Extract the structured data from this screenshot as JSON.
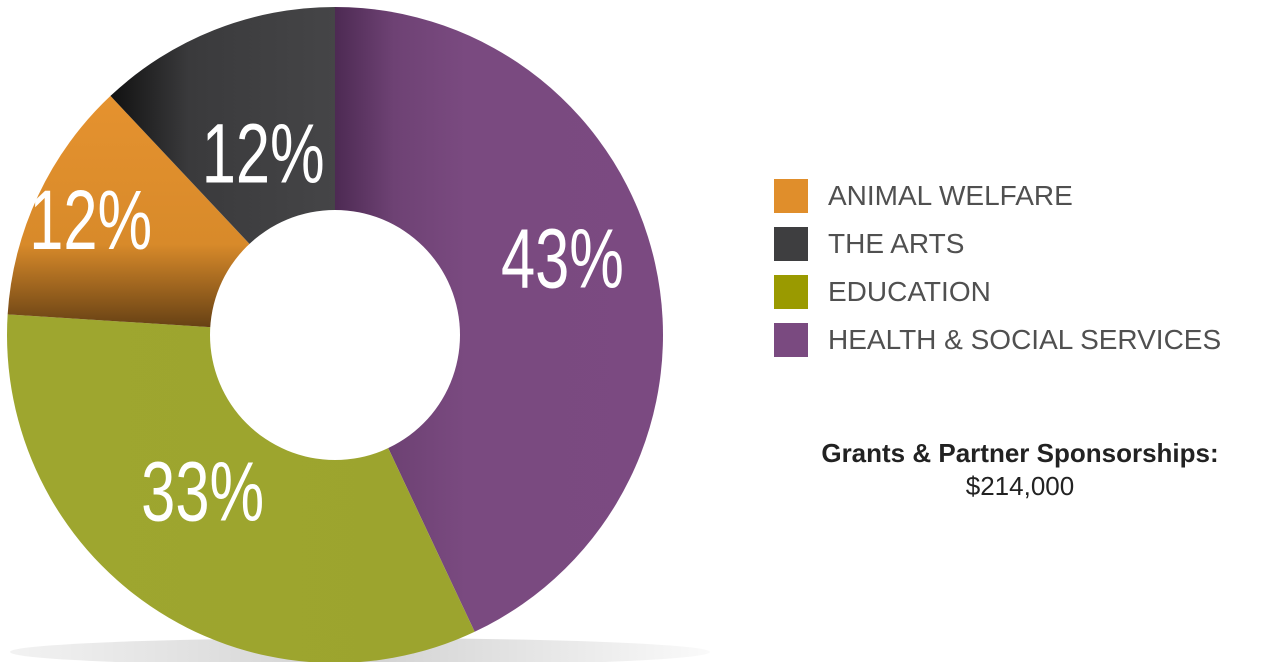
{
  "chart_data": {
    "type": "pie",
    "categories": [
      "ANIMAL WELFARE",
      "THE ARTS",
      "EDUCATION",
      "HEALTH & SOCIAL SERVICES"
    ],
    "values": [
      12,
      12,
      33,
      43
    ],
    "value_labels": [
      "12%",
      "12%",
      "33%",
      "43%"
    ],
    "unit": "%",
    "colors": [
      "#e08e2b",
      "#3e3e40",
      "#9ca52f",
      "#7a4a80"
    ],
    "donut": true,
    "legend_position": "right"
  },
  "legend": [
    {
      "label": "ANIMAL WELFARE",
      "color": "#e08e2b"
    },
    {
      "label": "THE ARTS",
      "color": "#3e3e40"
    },
    {
      "label": "EDUCATION",
      "color": "#9a9a00"
    },
    {
      "label": "HEALTH & SOCIAL SERVICES",
      "color": "#7a4a80"
    }
  ],
  "summary": {
    "heading": "Grants & Partner Sponsorships:",
    "value": "$214,000"
  }
}
